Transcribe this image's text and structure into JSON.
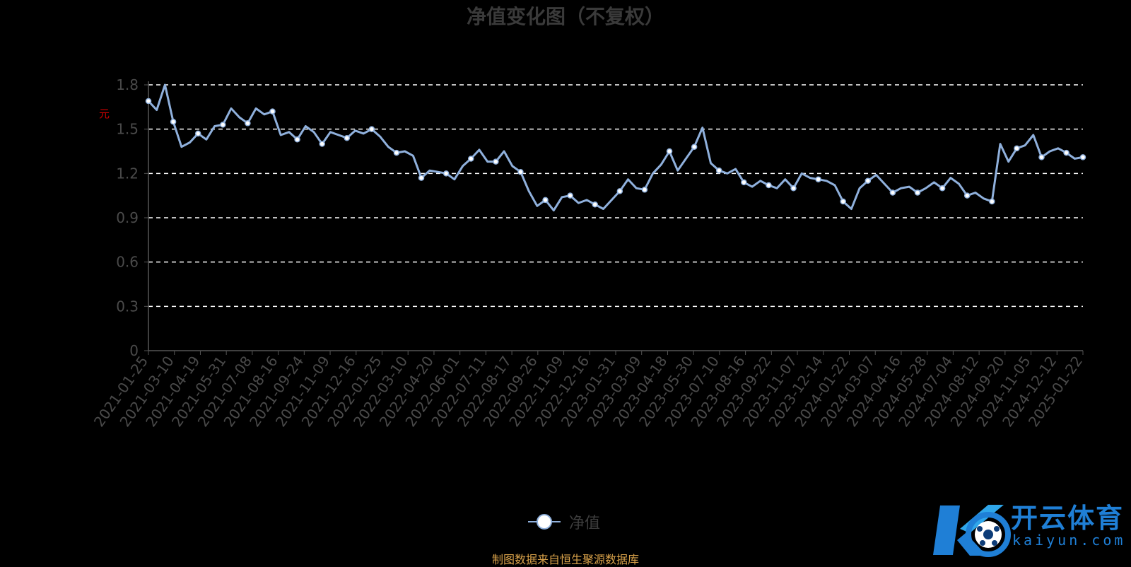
{
  "title": "净值变化图（不复权）",
  "source_note": "制图数据来自恒生聚源数据库",
  "watermark": {
    "cn": "开云体育",
    "en": "kaiyun.com"
  },
  "chart_data": {
    "type": "line",
    "title": "净值变化图（不复权）",
    "ylabel": "元",
    "xlabel": "",
    "ylim": [
      0,
      1.8
    ],
    "yticks": [
      0,
      0.3,
      0.6,
      0.9,
      1.2,
      1.5,
      1.8
    ],
    "grid": "horizontal dashed",
    "legend_position": "bottom-center",
    "line_color": "#8fb0dc",
    "x_ticks": [
      "2021-01-25",
      "2021-03-10",
      "2021-04-19",
      "2021-05-31",
      "2021-07-08",
      "2021-08-16",
      "2021-09-24",
      "2021-11-09",
      "2021-12-16",
      "2022-01-25",
      "2022-03-10",
      "2022-04-20",
      "2022-06-01",
      "2022-07-11",
      "2022-08-17",
      "2022-09-26",
      "2022-11-09",
      "2022-12-16",
      "2023-01-31",
      "2023-03-09",
      "2023-04-18",
      "2023-05-30",
      "2023-07-10",
      "2023-08-16",
      "2023-09-22",
      "2023-11-07",
      "2023-12-14",
      "2024-01-22",
      "2024-03-07",
      "2024-04-16",
      "2024-05-28",
      "2024-07-04",
      "2024-08-12",
      "2024-09-20",
      "2024-11-05",
      "2024-12-12",
      "2025-01-22"
    ],
    "series": [
      {
        "name": "净值",
        "values": [
          1.69,
          1.63,
          1.8,
          1.55,
          1.38,
          1.41,
          1.47,
          1.43,
          1.52,
          1.53,
          1.64,
          1.58,
          1.54,
          1.64,
          1.6,
          1.62,
          1.46,
          1.48,
          1.43,
          1.52,
          1.48,
          1.4,
          1.48,
          1.46,
          1.44,
          1.49,
          1.47,
          1.5,
          1.45,
          1.38,
          1.34,
          1.35,
          1.32,
          1.17,
          1.22,
          1.21,
          1.2,
          1.16,
          1.25,
          1.3,
          1.36,
          1.28,
          1.28,
          1.35,
          1.25,
          1.21,
          1.08,
          0.98,
          1.02,
          0.95,
          1.04,
          1.05,
          1.0,
          1.02,
          0.99,
          0.96,
          1.02,
          1.08,
          1.16,
          1.1,
          1.09,
          1.2,
          1.26,
          1.35,
          1.22,
          1.3,
          1.38,
          1.51,
          1.27,
          1.22,
          1.2,
          1.23,
          1.14,
          1.11,
          1.15,
          1.12,
          1.1,
          1.16,
          1.1,
          1.2,
          1.17,
          1.16,
          1.15,
          1.12,
          1.01,
          0.96,
          1.1,
          1.15,
          1.19,
          1.13,
          1.07,
          1.1,
          1.11,
          1.07,
          1.1,
          1.14,
          1.1,
          1.17,
          1.13,
          1.05,
          1.07,
          1.03,
          1.01,
          1.4,
          1.28,
          1.37,
          1.39,
          1.46,
          1.31,
          1.35,
          1.37,
          1.34,
          1.3,
          1.31
        ]
      }
    ]
  }
}
